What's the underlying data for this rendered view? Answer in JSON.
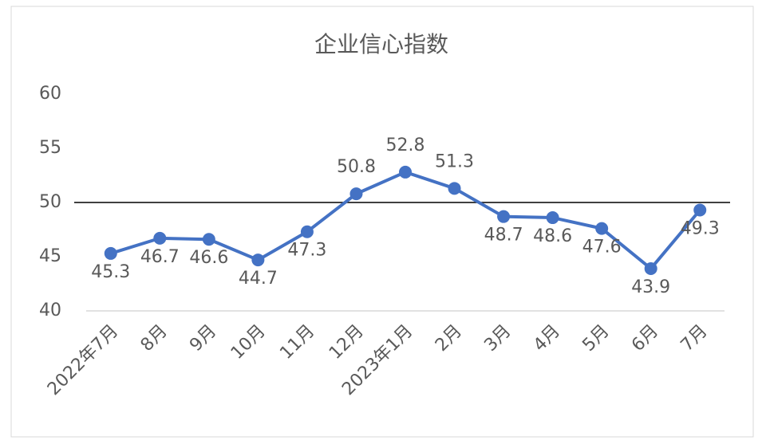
{
  "chart_data": {
    "type": "line",
    "title": "企业信心指数",
    "categories": [
      "2022年7月",
      "8月",
      "9月",
      "10月",
      "11月",
      "12月",
      "2023年1月",
      "2月",
      "3月",
      "4月",
      "5月",
      "6月",
      "7月"
    ],
    "series": [
      {
        "name": "企业信心指数",
        "color": "#4472c4",
        "values": [
          45.3,
          46.7,
          46.6,
          44.7,
          47.3,
          50.8,
          52.8,
          51.3,
          48.7,
          48.6,
          47.6,
          43.9,
          49.3
        ]
      }
    ],
    "ylim": [
      40,
      60
    ],
    "yticks": [
      40,
      45,
      50,
      55,
      60
    ],
    "reference_line": 50,
    "reference_color": "#000000",
    "grid": false
  }
}
